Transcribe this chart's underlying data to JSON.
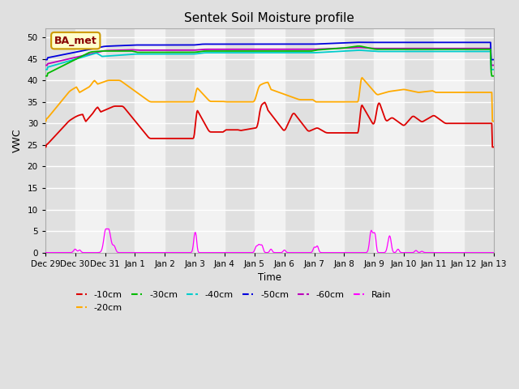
{
  "title": "Sentek Soil Moisture profile",
  "xlabel": "Time",
  "ylabel": "VWC",
  "annotation": "BA_met",
  "ylim": [
    0,
    52
  ],
  "yticks": [
    0,
    5,
    10,
    15,
    20,
    25,
    30,
    35,
    40,
    45,
    50
  ],
  "colors": {
    "10cm": "#dd0000",
    "20cm": "#ffaa00",
    "30cm": "#00bb00",
    "40cm": "#00cccc",
    "50cm": "#0000dd",
    "60cm": "#bb00bb",
    "rain": "#ff00ff"
  },
  "x_tick_labels": [
    "Dec 29",
    "Dec 30",
    "Dec 31",
    "Jan 1",
    "Jan 2",
    "Jan 3",
    "Jan 4",
    "Jan 5",
    "Jan 6",
    "Jan 7",
    "Jan 8",
    "Jan 9",
    "Jan 10",
    "Jan 11",
    "Jan 12",
    "Jan 13"
  ],
  "legend_labels": [
    "-10cm",
    "-20cm",
    "-30cm",
    "-40cm",
    "-50cm",
    "-60cm",
    "Rain"
  ],
  "fig_facecolor": "#e0e0e0",
  "ax_facecolor": "#f2f2f2",
  "band_color": "#d8d8d8"
}
